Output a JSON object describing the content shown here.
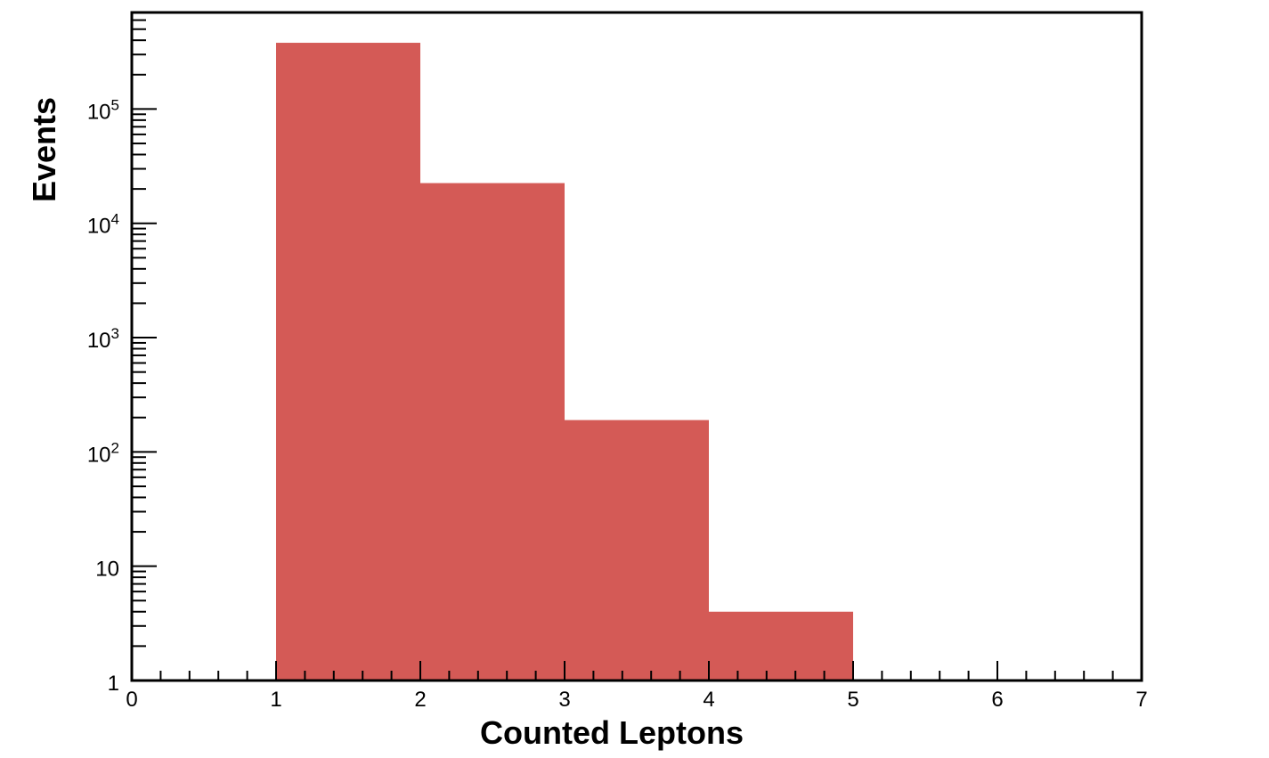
{
  "chart_data": {
    "type": "bar",
    "bins": [
      [
        1,
        2
      ],
      [
        2,
        3
      ],
      [
        3,
        4
      ],
      [
        4,
        5
      ]
    ],
    "values": [
      380000,
      22500,
      190,
      4
    ],
    "xlabel": "Counted Leptons",
    "ylabel": "Events",
    "xlim": [
      0,
      7
    ],
    "ylim": [
      1,
      700000
    ],
    "yscale": "log",
    "x_ticks": [
      "0",
      "1",
      "2",
      "3",
      "4",
      "5",
      "6",
      "7"
    ],
    "y_ticks": [
      {
        "value": 1,
        "base": "1",
        "exp": ""
      },
      {
        "value": 10,
        "base": "10",
        "exp": ""
      },
      {
        "value": 100,
        "base": "10",
        "exp": "2"
      },
      {
        "value": 1000,
        "base": "10",
        "exp": "3"
      },
      {
        "value": 10000,
        "base": "10",
        "exp": "4"
      },
      {
        "value": 100000,
        "base": "10",
        "exp": "5"
      }
    ],
    "grid": false,
    "bar_color": "#d45a56"
  }
}
